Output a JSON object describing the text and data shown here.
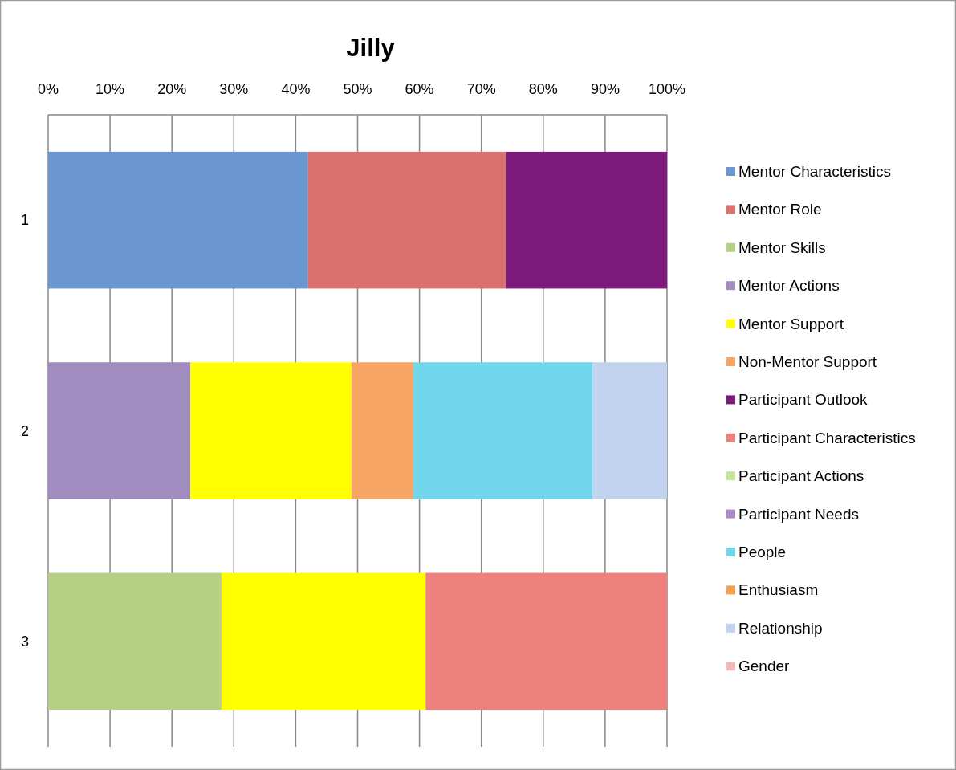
{
  "chart_data": {
    "type": "bar",
    "orientation": "horizontal",
    "stacked": true,
    "title": "Jilly",
    "categories": [
      "1",
      "2",
      "3"
    ],
    "series": [
      {
        "name": "Mentor Characteristics",
        "color": "#6a97cf",
        "values": [
          42,
          null,
          null
        ]
      },
      {
        "name": "Mentor Role",
        "color": "#d9716e",
        "values": [
          32,
          null,
          null
        ]
      },
      {
        "name": "Mentor Skills",
        "color": "#b5cf84",
        "values": [
          null,
          null,
          28
        ]
      },
      {
        "name": "Mentor Actions",
        "color": "#a08cbf",
        "values": [
          null,
          23,
          null
        ]
      },
      {
        "name": "Mentor Support",
        "color": "#ffff00",
        "values": [
          null,
          26,
          33
        ]
      },
      {
        "name": "Non-Mentor Support",
        "color": "#f6a565",
        "values": [
          null,
          10,
          null
        ]
      },
      {
        "name": "Participant Outlook",
        "color": "#7b1a7b",
        "values": [
          26,
          null,
          null
        ]
      },
      {
        "name": "Participant Characteristics",
        "color": "#ee817b",
        "values": [
          null,
          null,
          39
        ]
      },
      {
        "name": "Participant Actions",
        "color": "#c5e29a",
        "values": [
          null,
          null,
          null
        ]
      },
      {
        "name": "Participant Needs",
        "color": "#a98bc9",
        "values": [
          null,
          null,
          null
        ]
      },
      {
        "name": "People",
        "color": "#6fd6ec",
        "values": [
          null,
          29,
          null
        ]
      },
      {
        "name": "Enthusiasm",
        "color": "#f5a04c",
        "values": [
          null,
          null,
          null
        ]
      },
      {
        "name": "Relationship",
        "color": "#c0d2ee",
        "values": [
          null,
          12,
          null
        ]
      },
      {
        "name": "Gender",
        "color": "#f4b8b8",
        "values": [
          null,
          null,
          null
        ]
      }
    ],
    "xlim": [
      0,
      100
    ],
    "xticks": [
      {
        "value": 0,
        "label": "0%"
      },
      {
        "value": 10,
        "label": "10%"
      },
      {
        "value": 20,
        "label": "20%"
      },
      {
        "value": 30,
        "label": "30%"
      },
      {
        "value": 40,
        "label": "40%"
      },
      {
        "value": 50,
        "label": "50%"
      },
      {
        "value": 60,
        "label": "60%"
      },
      {
        "value": 70,
        "label": "70%"
      },
      {
        "value": 80,
        "label": "80%"
      },
      {
        "value": 90,
        "label": "90%"
      },
      {
        "value": 100,
        "label": "100%"
      }
    ],
    "grid": "x",
    "legend": "right"
  }
}
